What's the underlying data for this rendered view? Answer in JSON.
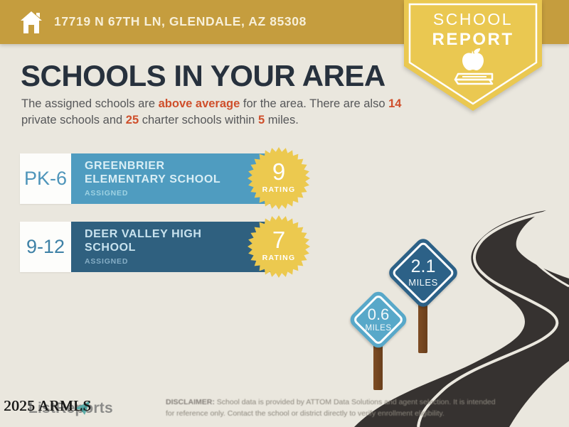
{
  "colors": {
    "background": "#eae7de",
    "header_gold": "#c59d3e",
    "badge_gold": "#eac851",
    "title_navy": "#27313d",
    "accent_red": "#cf4f2b",
    "row_light_blue": "#4f9cc0",
    "row_dark_blue": "#2f607f",
    "star_yellow": "#ecc94f",
    "road_dark": "#363230",
    "sign_dark_blue": "#2c6187",
    "sign_light_blue": "#58a8c9",
    "post_brown": "#7e4d24",
    "logo_teal": "#55a9a6"
  },
  "header": {
    "address": "17719 N 67TH LN, GLENDALE, AZ 85308"
  },
  "badge": {
    "line1": "SCHOOL",
    "line2": "REPORT"
  },
  "main": {
    "title": "SCHOOLS IN YOUR AREA",
    "intro_segments": [
      {
        "text": "The assigned schools are ",
        "highlight": false
      },
      {
        "text": "above average",
        "highlight": true
      },
      {
        "text": " for the area. There are also ",
        "highlight": false
      },
      {
        "text": "14",
        "highlight": true
      },
      {
        "text": " private schools and ",
        "highlight": false
      },
      {
        "text": "25",
        "highlight": true
      },
      {
        "text": " charter schools within ",
        "highlight": false
      },
      {
        "text": "5",
        "highlight": true
      },
      {
        "text": " miles.",
        "highlight": false
      }
    ]
  },
  "schools": [
    {
      "grades": "PK-6",
      "name_line1": "GREENBRIER",
      "name_line2": "ELEMENTARY SCHOOL",
      "status": "ASSIGNED",
      "rating": "9",
      "rating_label": "RATING"
    },
    {
      "grades": "9-12",
      "name_line1": "DEER VALLEY HIGH",
      "name_line2": "SCHOOL",
      "status": "ASSIGNED",
      "rating": "7",
      "rating_label": "RATING"
    }
  ],
  "signs": [
    {
      "value": "2.1",
      "unit": "MILES"
    },
    {
      "value": "0.6",
      "unit": "MILES"
    }
  ],
  "footer": {
    "watermark": "2025 ARMLS",
    "logo_text": "ListReports",
    "disclaimer_label": "DISCLAIMER:",
    "disclaimer_line1": " School data is provided by ATTOM Data Solutions and agent selection. It is intended",
    "disclaimer_line2": "for reference only. Contact the school or district directly to verify enrollment eligibility."
  }
}
